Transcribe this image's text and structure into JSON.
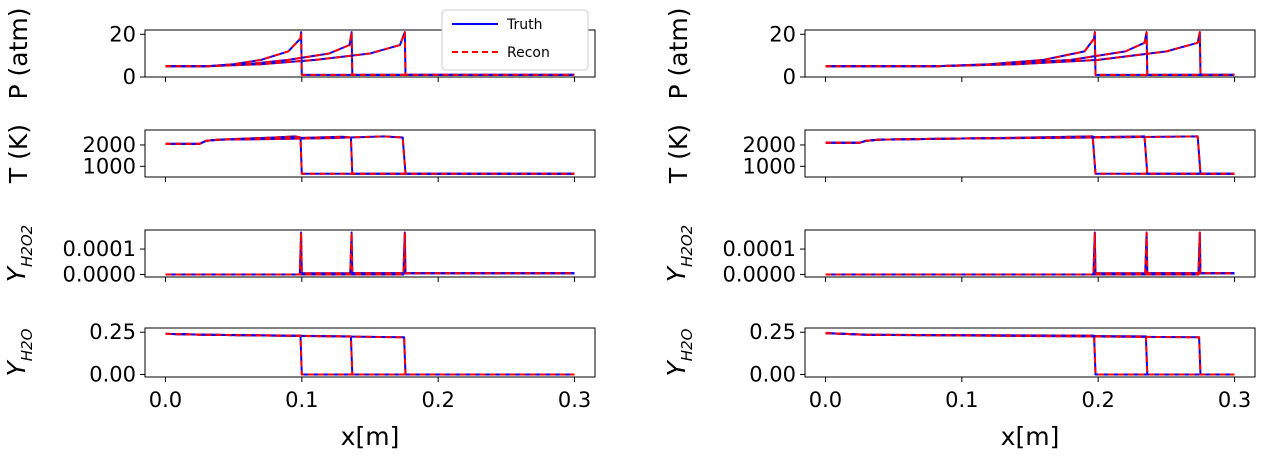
{
  "legend": {
    "location": "top-right of first panel",
    "entries": [
      {
        "label": "Truth",
        "color": "#0000ff",
        "style": "solid"
      },
      {
        "label": "Recon",
        "color": "#ff0000",
        "style": "dashed"
      }
    ]
  },
  "colors": {
    "truth": "#0000ff",
    "recon": "#ff0000"
  },
  "chart_data": [
    {
      "type": "line",
      "column": "left",
      "row": 0,
      "ylabel": "P (atm)",
      "ylim": [
        0,
        22
      ],
      "yticks": [
        0,
        20
      ],
      "ytick_labels": [
        "0",
        "20"
      ],
      "xlim": [
        -0.015,
        0.315
      ],
      "xticks": [
        0.0,
        0.1,
        0.2,
        0.3
      ],
      "xtick_labels": [],
      "series": [
        {
          "name": "Truth",
          "x": [
            0,
            0.03,
            0.05,
            0.07,
            0.09,
            0.099,
            0.0995,
            0.1,
            0.3
          ],
          "y": [
            5,
            5,
            6,
            8,
            12,
            18,
            21,
            1,
            1
          ]
        },
        {
          "name": "Truth",
          "x": [
            0,
            0.03,
            0.06,
            0.09,
            0.12,
            0.135,
            0.1365,
            0.137,
            0.3
          ],
          "y": [
            5,
            5,
            6,
            8,
            11,
            15,
            21,
            1,
            1
          ]
        },
        {
          "name": "Truth",
          "x": [
            0,
            0.03,
            0.07,
            0.11,
            0.15,
            0.172,
            0.1755,
            0.176,
            0.3
          ],
          "y": [
            5,
            5,
            6,
            8,
            11,
            15,
            21,
            1,
            1
          ]
        }
      ]
    },
    {
      "type": "line",
      "column": "left",
      "row": 1,
      "ylabel": "T (K)",
      "ylim": [
        500,
        2700
      ],
      "yticks": [
        1000,
        2000
      ],
      "ytick_labels": [
        "1000",
        "2000"
      ],
      "xlim": [
        -0.015,
        0.315
      ],
      "xticks": [
        0.0,
        0.1,
        0.2,
        0.3
      ],
      "xtick_labels": [],
      "series": [
        {
          "name": "Truth",
          "x": [
            0,
            0.025,
            0.03,
            0.04,
            0.06,
            0.08,
            0.095,
            0.099,
            0.1,
            0.3
          ],
          "y": [
            2050,
            2050,
            2200,
            2250,
            2300,
            2350,
            2400,
            2350,
            650,
            650
          ]
        },
        {
          "name": "Truth",
          "x": [
            0,
            0.025,
            0.03,
            0.04,
            0.07,
            0.1,
            0.13,
            0.136,
            0.137,
            0.3
          ],
          "y": [
            2050,
            2050,
            2200,
            2250,
            2280,
            2330,
            2380,
            2350,
            650,
            650
          ]
        },
        {
          "name": "Truth",
          "x": [
            0,
            0.025,
            0.03,
            0.04,
            0.08,
            0.12,
            0.16,
            0.174,
            0.176,
            0.3
          ],
          "y": [
            2050,
            2050,
            2200,
            2250,
            2280,
            2320,
            2400,
            2350,
            650,
            650
          ]
        }
      ]
    },
    {
      "type": "line",
      "column": "left",
      "row": 2,
      "ylabel": "Y_{H2O2}",
      "ylim": [
        -1e-05,
        0.000175
      ],
      "yticks": [
        0,
        0.0001
      ],
      "ytick_labels": [
        "0.0000",
        "0.0001"
      ],
      "xlim": [
        -0.015,
        0.315
      ],
      "xticks": [
        0.0,
        0.1,
        0.2,
        0.3
      ],
      "xtick_labels": [],
      "series": [
        {
          "name": "Truth",
          "x": [
            0,
            0.0985,
            0.0995,
            0.1,
            0.3
          ],
          "y": [
            0,
            0,
            0.000165,
            5e-06,
            5e-06
          ]
        },
        {
          "name": "Truth",
          "x": [
            0,
            0.1355,
            0.1365,
            0.137,
            0.3
          ],
          "y": [
            0,
            0,
            0.000165,
            5e-06,
            5e-06
          ]
        },
        {
          "name": "Truth",
          "x": [
            0,
            0.1745,
            0.1755,
            0.176,
            0.3
          ],
          "y": [
            0,
            0,
            0.000165,
            5e-06,
            5e-06
          ]
        }
      ]
    },
    {
      "type": "line",
      "column": "left",
      "row": 3,
      "ylabel": "Y_{H2O}",
      "ylim": [
        -0.015,
        0.275
      ],
      "yticks": [
        0.0,
        0.25
      ],
      "ytick_labels": [
        "0.00",
        "0.25"
      ],
      "xlim": [
        -0.015,
        0.315
      ],
      "xticks": [
        0.0,
        0.1,
        0.2,
        0.3
      ],
      "xtick_labels": [
        "0.0",
        "0.1",
        "0.2",
        "0.3"
      ],
      "xlabel": "x[m]",
      "series": [
        {
          "name": "Truth",
          "x": [
            0,
            0.03,
            0.099,
            0.1,
            0.3
          ],
          "y": [
            0.24,
            0.235,
            0.23,
            0,
            0
          ]
        },
        {
          "name": "Truth",
          "x": [
            0,
            0.03,
            0.136,
            0.137,
            0.3
          ],
          "y": [
            0.24,
            0.235,
            0.225,
            0,
            0
          ]
        },
        {
          "name": "Truth",
          "x": [
            0,
            0.03,
            0.175,
            0.176,
            0.3
          ],
          "y": [
            0.24,
            0.235,
            0.22,
            0,
            0
          ]
        }
      ]
    },
    {
      "type": "line",
      "column": "right",
      "row": 0,
      "ylabel": "P (atm)",
      "ylim": [
        0,
        22
      ],
      "yticks": [
        0,
        20
      ],
      "ytick_labels": [
        "0",
        "20"
      ],
      "xlim": [
        -0.015,
        0.315
      ],
      "xticks": [
        0.0,
        0.1,
        0.2,
        0.3
      ],
      "xtick_labels": [],
      "series": [
        {
          "name": "Truth",
          "x": [
            0,
            0.08,
            0.12,
            0.16,
            0.19,
            0.197,
            0.1975,
            0.198,
            0.3
          ],
          "y": [
            5,
            5,
            6,
            8,
            12,
            18,
            21,
            1,
            1
          ]
        },
        {
          "name": "Truth",
          "x": [
            0,
            0.08,
            0.13,
            0.18,
            0.22,
            0.234,
            0.2355,
            0.236,
            0.3
          ],
          "y": [
            5,
            5,
            6,
            8,
            12,
            16,
            21,
            1,
            1
          ]
        },
        {
          "name": "Truth",
          "x": [
            0,
            0.08,
            0.14,
            0.2,
            0.25,
            0.273,
            0.2745,
            0.275,
            0.3
          ],
          "y": [
            5,
            5,
            6,
            8,
            12,
            16,
            21,
            1,
            1
          ]
        }
      ]
    },
    {
      "type": "line",
      "column": "right",
      "row": 1,
      "ylabel": "T (K)",
      "ylim": [
        500,
        2700
      ],
      "yticks": [
        1000,
        2000
      ],
      "ytick_labels": [
        "1000",
        "2000"
      ],
      "xlim": [
        -0.015,
        0.315
      ],
      "xticks": [
        0.0,
        0.1,
        0.2,
        0.3
      ],
      "xtick_labels": [],
      "series": [
        {
          "name": "Truth",
          "x": [
            0,
            0.025,
            0.03,
            0.04,
            0.1,
            0.15,
            0.196,
            0.198,
            0.3
          ],
          "y": [
            2100,
            2100,
            2200,
            2250,
            2300,
            2350,
            2400,
            650,
            650
          ]
        },
        {
          "name": "Truth",
          "x": [
            0,
            0.025,
            0.03,
            0.04,
            0.1,
            0.18,
            0.234,
            0.236,
            0.3
          ],
          "y": [
            2100,
            2100,
            2200,
            2250,
            2300,
            2350,
            2400,
            650,
            650
          ]
        },
        {
          "name": "Truth",
          "x": [
            0,
            0.025,
            0.03,
            0.04,
            0.1,
            0.2,
            0.273,
            0.275,
            0.3
          ],
          "y": [
            2100,
            2100,
            2200,
            2250,
            2300,
            2350,
            2400,
            650,
            650
          ]
        }
      ]
    },
    {
      "type": "line",
      "column": "right",
      "row": 2,
      "ylabel": "Y_{H2O2}",
      "ylim": [
        -1e-05,
        0.000175
      ],
      "yticks": [
        0,
        0.0001
      ],
      "ytick_labels": [
        "0.0000",
        "0.0001"
      ],
      "xlim": [
        -0.015,
        0.315
      ],
      "xticks": [
        0.0,
        0.1,
        0.2,
        0.3
      ],
      "xtick_labels": [],
      "series": [
        {
          "name": "Truth",
          "x": [
            0,
            0.1965,
            0.1975,
            0.198,
            0.3
          ],
          "y": [
            0,
            0,
            0.000165,
            5e-06,
            5e-06
          ]
        },
        {
          "name": "Truth",
          "x": [
            0,
            0.2345,
            0.2355,
            0.236,
            0.3
          ],
          "y": [
            0,
            0,
            0.000165,
            5e-06,
            5e-06
          ]
        },
        {
          "name": "Truth",
          "x": [
            0,
            0.2735,
            0.2745,
            0.275,
            0.3
          ],
          "y": [
            0,
            0,
            0.000165,
            5e-06,
            5e-06
          ]
        }
      ]
    },
    {
      "type": "line",
      "column": "right",
      "row": 3,
      "ylabel": "Y_{H2O}",
      "ylim": [
        -0.015,
        0.275
      ],
      "yticks": [
        0.0,
        0.25
      ],
      "ytick_labels": [
        "0.00",
        "0.25"
      ],
      "xlim": [
        -0.015,
        0.315
      ],
      "xticks": [
        0.0,
        0.1,
        0.2,
        0.3
      ],
      "xtick_labels": [
        "0.0",
        "0.1",
        "0.2",
        "0.3"
      ],
      "xlabel": "x[m]",
      "series": [
        {
          "name": "Truth",
          "x": [
            0,
            0.03,
            0.197,
            0.198,
            0.3
          ],
          "y": [
            0.245,
            0.235,
            0.23,
            0,
            0
          ]
        },
        {
          "name": "Truth",
          "x": [
            0,
            0.03,
            0.235,
            0.236,
            0.3
          ],
          "y": [
            0.245,
            0.235,
            0.225,
            0,
            0
          ]
        },
        {
          "name": "Truth",
          "x": [
            0,
            0.03,
            0.274,
            0.275,
            0.3
          ],
          "y": [
            0.245,
            0.235,
            0.22,
            0,
            0
          ]
        }
      ]
    }
  ]
}
